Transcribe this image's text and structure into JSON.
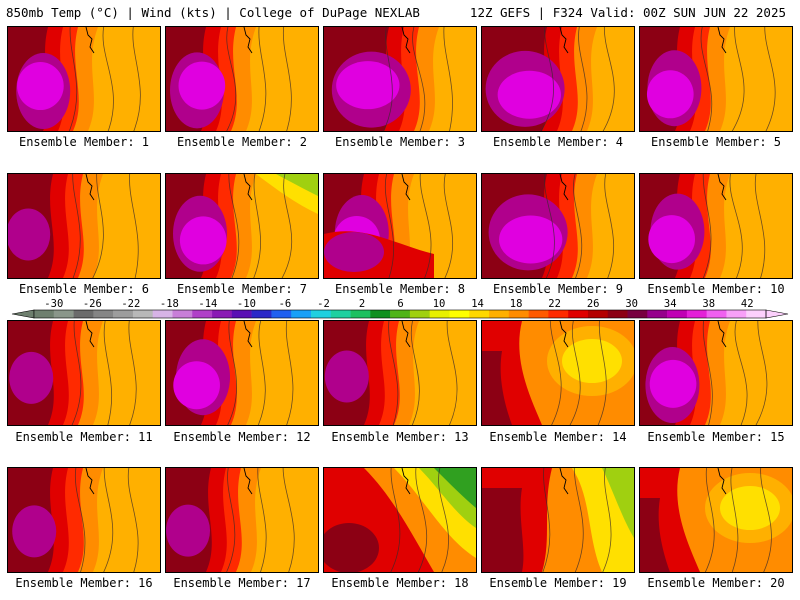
{
  "header": {
    "left_title": "850mb Temp (°C) | Wind (kts) | College of DuPage NEXLAB",
    "right_title": "12Z GEFS | F324 Valid: 00Z SUN JUN 22 2025"
  },
  "panels": [
    {
      "label": "Ensemble Member: 1",
      "pattern": "west_hot"
    },
    {
      "label": "Ensemble Member: 2",
      "pattern": "west_hot"
    },
    {
      "label": "Ensemble Member: 3",
      "pattern": "center_hot"
    },
    {
      "label": "Ensemble Member: 4",
      "pattern": "center_hot"
    },
    {
      "label": "Ensemble Member: 5",
      "pattern": "west_hot"
    },
    {
      "label": "Ensemble Member: 6",
      "pattern": "west_warm"
    },
    {
      "label": "Ensemble Member: 7",
      "pattern": "west_hot_cool_ne"
    },
    {
      "label": "Ensemble Member: 8",
      "pattern": "south_hot"
    },
    {
      "label": "Ensemble Member: 9",
      "pattern": "center_hot"
    },
    {
      "label": "Ensemble Member: 10",
      "pattern": "west_hot"
    },
    {
      "label": "Ensemble Member: 11",
      "pattern": "west_warm"
    },
    {
      "label": "Ensemble Member: 12",
      "pattern": "west_hot"
    },
    {
      "label": "Ensemble Member: 13",
      "pattern": "west_warm"
    },
    {
      "label": "Ensemble Member: 14",
      "pattern": "trough"
    },
    {
      "label": "Ensemble Member: 15",
      "pattern": "west_hot"
    },
    {
      "label": "Ensemble Member: 16",
      "pattern": "west_warm"
    },
    {
      "label": "Ensemble Member: 17",
      "pattern": "west_warm"
    },
    {
      "label": "Ensemble Member: 18",
      "pattern": "cool_ne"
    },
    {
      "label": "Ensemble Member: 19",
      "pattern": "cool_east"
    },
    {
      "label": "Ensemble Member: 20",
      "pattern": "trough"
    }
  ],
  "colorbar": {
    "labels": [
      "-30",
      "-26",
      "-22",
      "-18",
      "-14",
      "-10",
      "-6",
      "-2",
      "2",
      "6",
      "10",
      "14",
      "18",
      "22",
      "26",
      "30",
      "34",
      "38",
      "42"
    ],
    "colors": [
      "#6e7f6e",
      "#8a968a",
      "#6b6b6b",
      "#858585",
      "#9d9d9d",
      "#b8b8b8",
      "#d7b3e6",
      "#c87ed8",
      "#b040c8",
      "#8a1ab4",
      "#5a10b4",
      "#2a28c8",
      "#2060f0",
      "#18a0f8",
      "#20d0e0",
      "#20d0a0",
      "#1cc060",
      "#109020",
      "#50b418",
      "#a0d010",
      "#e8f000",
      "#ffff00",
      "#ffd800",
      "#ffb000",
      "#ff8c00",
      "#ff5a00",
      "#ff2a00",
      "#e00000",
      "#b40000",
      "#8c0014",
      "#780040",
      "#96008c",
      "#c000b4",
      "#e420d8",
      "#f060f0",
      "#f8a0f8",
      "#fcd0fc"
    ]
  },
  "colors": {
    "hot_core": "#e000e0",
    "hot_magenta": "#b0008c",
    "maroon": "#8c0014",
    "red": "#e00000",
    "red_orange": "#ff2a00",
    "orange": "#ff8c00",
    "gold": "#ffb000",
    "yellow": "#ffe000",
    "lime": "#a0d010",
    "green": "#30a020"
  }
}
